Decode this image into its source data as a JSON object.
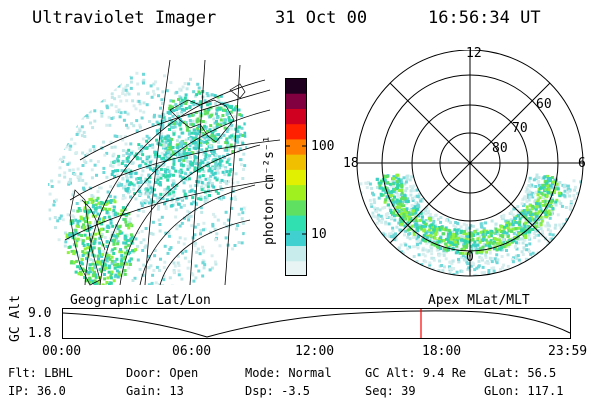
{
  "header": {
    "instrument": "Ultraviolet Imager",
    "date": "31 Oct 00",
    "time": "16:56:34 UT"
  },
  "colorbar": {
    "unit_label": "photon cm⁻²s⁻¹",
    "ticks": [
      "100",
      "10"
    ],
    "scale": "log",
    "colors": [
      "#e8f4f4",
      "#c8ecec",
      "#40d0d0",
      "#30e0b0",
      "#60e060",
      "#a0f020",
      "#e0f000",
      "#f0c000",
      "#ff8000",
      "#ff2000",
      "#d00020",
      "#800040",
      "#200020"
    ]
  },
  "geo_panel": {
    "caption": "Geographic Lat/Lon"
  },
  "polar_panel": {
    "caption": "Apex MLat/MLT",
    "mlt_labels": {
      "top": "12",
      "left": "18",
      "right": "6",
      "bottom": "0"
    },
    "lat_labels": [
      "60",
      "70",
      "80"
    ]
  },
  "altitude_plot": {
    "y_label": "GC Alt",
    "y_ticks": [
      "9.0",
      "1.8"
    ],
    "x_ticks": [
      "00:00",
      "06:00",
      "12:00",
      "18:00",
      "23:59"
    ],
    "marker_time": "16:56",
    "marker_color": "#ff0000"
  },
  "footer": {
    "flt": "Flt: LBHL",
    "ip": "IP: 36.0",
    "door": "Door: Open",
    "gain": "Gain: 13",
    "mode": "Mode: Normal",
    "dsp": "Dsp:    -3.5",
    "gc_alt": "GC Alt: 9.4 Re",
    "seq": "Seq: 39",
    "glat": "GLat:  56.5",
    "glon": "GLon: 117.1"
  }
}
